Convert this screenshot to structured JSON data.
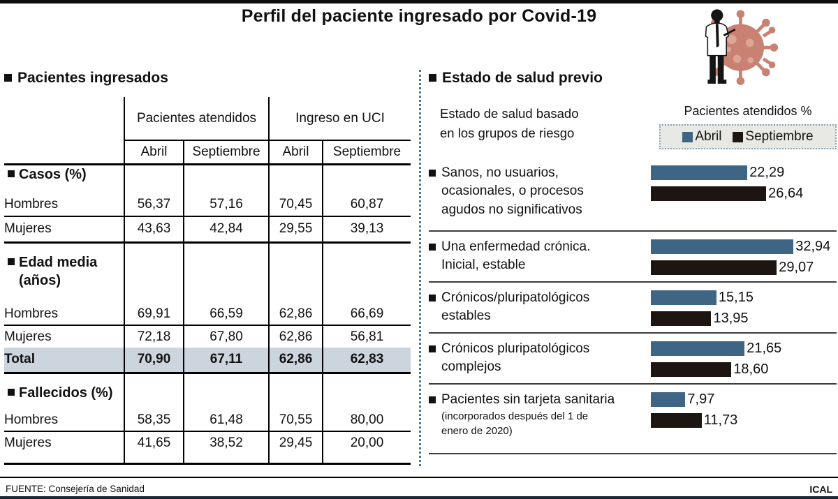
{
  "title": "Perfil del paciente ingresado por Covid-19",
  "colors": {
    "abril_blue": "#3e6583",
    "septiembre_black": "#1d1511",
    "total_row_bg": "#ccd5de",
    "divider_dotted_blue": "#4d7791",
    "virus_body": "#c98271"
  },
  "left": {
    "section_title": "Pacientes ingresados",
    "table": {
      "group_headers": [
        "Pacientes atendidos",
        "Ingreso en UCI"
      ],
      "month_headers": [
        "Abril",
        "Septiembre",
        "Abril",
        "Septiembre"
      ],
      "sections": [
        {
          "title": "Casos (%)",
          "title_line2": "",
          "rows": [
            {
              "label": "Hombres",
              "values": [
                "56,37",
                "57,16",
                "70,45",
                "60,87"
              ]
            },
            {
              "label": "Mujeres",
              "values": [
                "43,63",
                "42,84",
                "29,55",
                "39,13"
              ]
            }
          ]
        },
        {
          "title": "Edad media",
          "title_line2": "(años)",
          "rows": [
            {
              "label": "Hombres",
              "values": [
                "69,91",
                "66,59",
                "62,86",
                "66,69"
              ]
            },
            {
              "label": "Mujeres",
              "values": [
                "72,18",
                "67,80",
                "62,86",
                "56,81"
              ]
            },
            {
              "label": "Total",
              "values": [
                "70,90",
                "67,11",
                "62,86",
                "62,83"
              ]
            }
          ]
        },
        {
          "title": "Fallecidos (%)",
          "title_line2": "",
          "rows": [
            {
              "label": "Hombres",
              "values": [
                "58,35",
                "61,48",
                "70,55",
                "80,00"
              ]
            },
            {
              "label": "Mujeres",
              "values": [
                "41,65",
                "38,52",
                "29,45",
                "20,00"
              ]
            }
          ]
        }
      ]
    }
  },
  "right": {
    "section_title": "Estado de salud previo",
    "subtitle_line1": "Estado de salud basado",
    "subtitle_line2": "en los grupos de riesgo",
    "axis_title": "Pacientes atendidos %",
    "legend": [
      {
        "label": "Abril",
        "color": "#3e6583"
      },
      {
        "label": "Septiembre",
        "color": "#1d1511"
      }
    ],
    "categories": [
      {
        "lines": [
          "Sanos, no usuarios,",
          "ocasionales, o procesos",
          "agudos no significativos"
        ],
        "abril": {
          "value": 22.29,
          "label": "22,29"
        },
        "septiembre": {
          "value": 26.64,
          "label": "26,64"
        }
      },
      {
        "lines": [
          "Una enfermedad crónica.",
          "Inicial, estable"
        ],
        "abril": {
          "value": 32.94,
          "label": "32,94"
        },
        "septiembre": {
          "value": 29.07,
          "label": "29,07"
        }
      },
      {
        "lines": [
          "Crónicos/pluripatológicos",
          "estables"
        ],
        "abril": {
          "value": 15.15,
          "label": "15,15"
        },
        "septiembre": {
          "value": 13.95,
          "label": "13,95"
        }
      },
      {
        "lines": [
          "Crónicos pluripatológicos",
          "complejos"
        ],
        "abril": {
          "value": 21.65,
          "label": "21,65"
        },
        "septiembre": {
          "value": 18.6,
          "label": "18,60"
        }
      },
      {
        "lines": [
          "Pacientes sin tarjeta sanitaria"
        ],
        "small_lines": [
          "(incorporados después del 1 de",
          "enero de 2020)"
        ],
        "abril": {
          "value": 7.97,
          "label": "7,97"
        },
        "septiembre": {
          "value": 11.73,
          "label": "11,73"
        }
      }
    ]
  },
  "footer": {
    "source": "FUENTE: Consejería de Sanidad",
    "credit": "ICAL"
  },
  "chart_data": [
    {
      "type": "table",
      "title": "Pacientes ingresados",
      "columns": [
        "",
        "Pacientes atendidos - Abril",
        "Pacientes atendidos - Septiembre",
        "Ingreso en UCI - Abril",
        "Ingreso en UCI - Septiembre"
      ],
      "rows": [
        [
          "Casos (%) - Hombres",
          56.37,
          57.16,
          70.45,
          60.87
        ],
        [
          "Casos (%) - Mujeres",
          43.63,
          42.84,
          29.55,
          39.13
        ],
        [
          "Edad media (años) - Hombres",
          69.91,
          66.59,
          62.86,
          66.69
        ],
        [
          "Edad media (años) - Mujeres",
          72.18,
          67.8,
          62.86,
          56.81
        ],
        [
          "Edad media (años) - Total",
          70.9,
          67.11,
          62.86,
          62.83
        ],
        [
          "Fallecidos (%) - Hombres",
          58.35,
          61.48,
          70.55,
          80.0
        ],
        [
          "Fallecidos (%) - Mujeres",
          41.65,
          38.52,
          29.45,
          20.0
        ]
      ]
    },
    {
      "type": "bar",
      "title": "Estado de salud previo",
      "xlabel": "Pacientes atendidos %",
      "ylabel": "Estado de salud basado en los grupos de riesgo",
      "legend_position": "top-right",
      "categories": [
        "Sanos, no usuarios, ocasionales, o procesos agudos no significativos",
        "Una enfermedad crónica. Inicial, estable",
        "Crónicos/pluripatológicos estables",
        "Crónicos pluripatológicos complejos",
        "Pacientes sin tarjeta sanitaria (incorporados después del 1 de enero de 2020)"
      ],
      "series": [
        {
          "name": "Abril",
          "values": [
            22.29,
            32.94,
            15.15,
            21.65,
            7.97
          ]
        },
        {
          "name": "Septiembre",
          "values": [
            26.64,
            29.07,
            13.95,
            18.6,
            11.73
          ]
        }
      ]
    }
  ]
}
